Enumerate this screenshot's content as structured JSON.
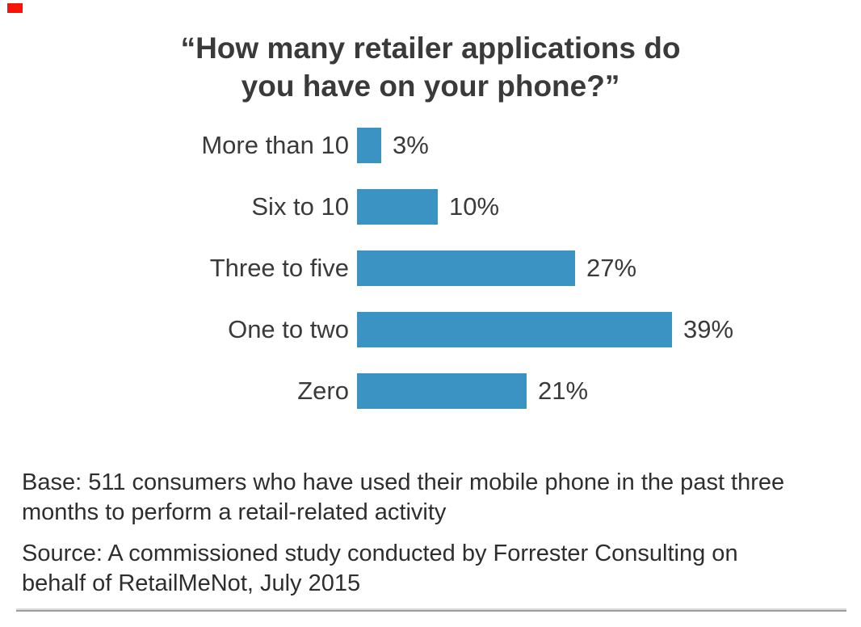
{
  "marker": {
    "color": "#fb1207"
  },
  "title": {
    "lines": [
      "“How many retailer applications do",
      "you have on your phone?”"
    ],
    "color": "#3a3a3a"
  },
  "chart_data": {
    "type": "bar",
    "orientation": "horizontal",
    "title": "“How many retailer applications do you have on your phone?”",
    "categories": [
      "More than 10",
      "Six to 10",
      "Three to five",
      "One to two",
      "Zero"
    ],
    "values": [
      3,
      10,
      27,
      39,
      21
    ],
    "value_labels": [
      "3%",
      "10%",
      "27%",
      "39%",
      "21%"
    ],
    "xlabel": "",
    "ylabel": "",
    "xlim": [
      0,
      100
    ],
    "unit": "percent",
    "bar_color": "#3b93c4",
    "label_color": "#3a3a3a",
    "grid": false,
    "legend": "none",
    "data_labels_position": "right-of-bar"
  },
  "footer": {
    "base_lines": [
      "Base: 511 consumers who have used their mobile phone in the past three",
      "months to perform a retail-related activity"
    ],
    "base_text": "Base: 511 consumers who have used their mobile phone in the past three months to perform a retail-related activity",
    "source_lines": [
      "Source: A commissioned study conducted by Forrester Consulting on",
      "behalf of RetailMeNot, July 2015"
    ],
    "source_text": "Source: A commissioned study conducted by Forrester Consulting on behalf of RetailMeNot, July 2015"
  }
}
